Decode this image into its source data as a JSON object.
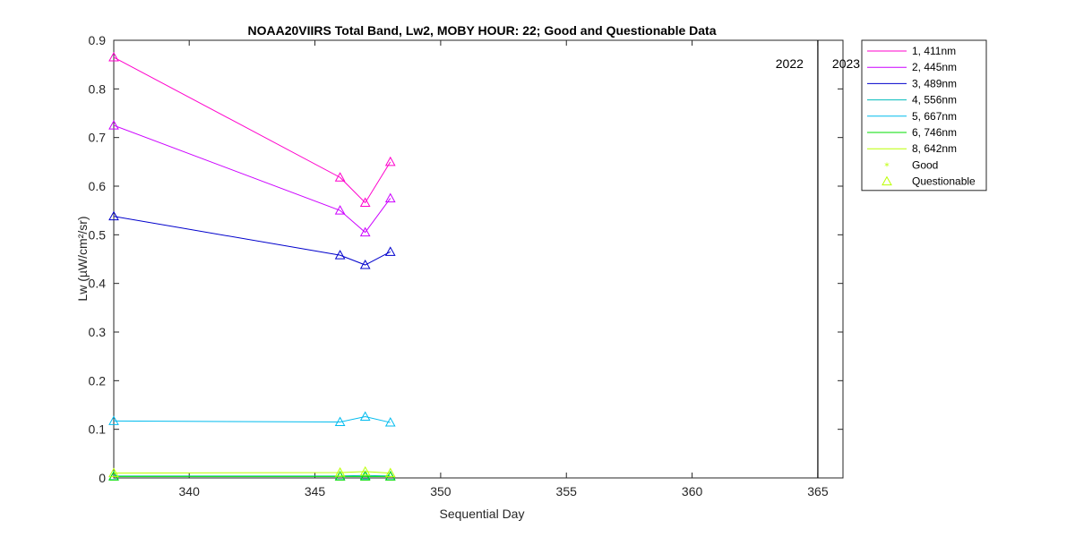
{
  "chart_data": {
    "type": "line",
    "title": "NOAA20VIIRS Total Band,  Lw2, MOBY HOUR: 22;  Good and Questionable Data",
    "xlabel": "Sequential Day",
    "ylabel": "Lw (µW/cm²/sr)",
    "xlim": [
      337,
      366
    ],
    "ylim": [
      0,
      0.9
    ],
    "xticks": [
      340,
      345,
      350,
      355,
      360,
      365
    ],
    "yticks": [
      0,
      0.1,
      0.2,
      0.3,
      0.4,
      0.5,
      0.6,
      0.7,
      0.8,
      0.9
    ],
    "grid": false,
    "legend_position": "outside-top-right",
    "x": [
      337,
      346,
      347,
      348
    ],
    "series": [
      {
        "name": "1, 411nm",
        "color": "#ff00cc",
        "values": [
          0.865,
          0.618,
          0.566,
          0.65
        ]
      },
      {
        "name": "2, 445nm",
        "color": "#cc00ff",
        "values": [
          0.725,
          0.55,
          0.505,
          0.575
        ]
      },
      {
        "name": "3, 489nm",
        "color": "#0000cc",
        "values": [
          0.538,
          0.458,
          0.438,
          0.465
        ]
      },
      {
        "name": "4, 556nm",
        "color": "#00bbbb",
        "values": [
          0.004,
          0.004,
          0.005,
          0.004
        ]
      },
      {
        "name": "5, 667nm",
        "color": "#00bbee",
        "values": [
          0.117,
          0.115,
          0.126,
          0.114
        ]
      },
      {
        "name": "6, 746nm",
        "color": "#00dd00",
        "values": [
          0.003,
          0.003,
          0.003,
          0.003
        ]
      },
      {
        "name": "8, 642nm",
        "color": "#bbff00",
        "values": [
          0.01,
          0.011,
          0.013,
          0.01
        ]
      }
    ],
    "marker_legend": [
      {
        "name": "Good",
        "symbol": "*",
        "color": "#bbff00"
      },
      {
        "name": "Questionable",
        "symbol": "triangle",
        "color": "#bbff00"
      }
    ],
    "year_divider": {
      "x": 365,
      "left_label": "2022",
      "right_label": "2023"
    }
  }
}
